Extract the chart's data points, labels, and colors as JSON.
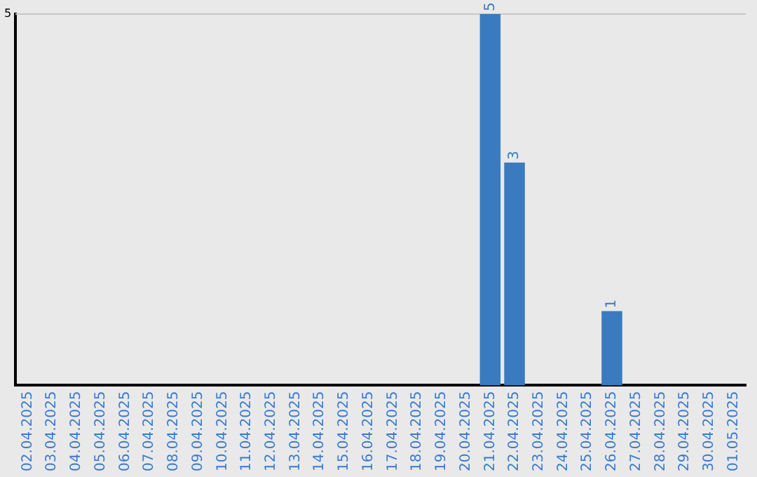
{
  "chart_data": {
    "type": "bar",
    "categories": [
      "02.04.2025",
      "03.04.2025",
      "04.04.2025",
      "05.04.2025",
      "06.04.2025",
      "07.04.2025",
      "08.04.2025",
      "09.04.2025",
      "10.04.2025",
      "11.04.2025",
      "12.04.2025",
      "13.04.2025",
      "14.04.2025",
      "15.04.2025",
      "16.04.2025",
      "17.04.2025",
      "18.04.2025",
      "19.04.2025",
      "20.04.2025",
      "21.04.2025",
      "22.04.2025",
      "23.04.2025",
      "24.04.2025",
      "25.04.2025",
      "26.04.2025",
      "27.04.2025",
      "28.04.2025",
      "29.04.2025",
      "30.04.2025",
      "01.05.2025"
    ],
    "values": [
      null,
      null,
      null,
      null,
      null,
      null,
      null,
      null,
      null,
      null,
      null,
      null,
      null,
      null,
      null,
      null,
      null,
      null,
      null,
      5,
      3,
      null,
      null,
      null,
      1,
      null,
      null,
      null,
      null,
      null
    ],
    "data_labels": true,
    "color": "#3a7bbf",
    "ylim": [
      0,
      5
    ],
    "yticks": [
      5
    ],
    "ref_lines": [
      {
        "axis": "y",
        "value": 5,
        "color": "#c8c8c8"
      }
    ],
    "legend": false
  }
}
